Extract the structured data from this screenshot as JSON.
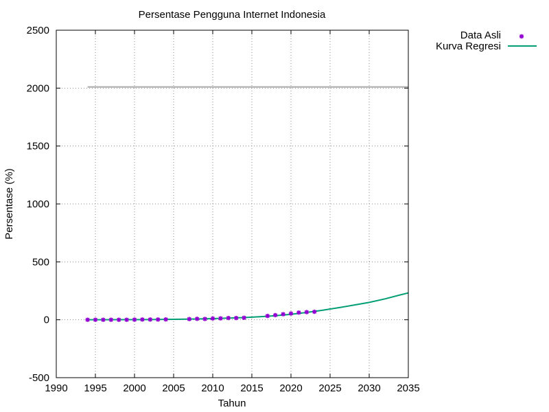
{
  "chart_data": {
    "type": "scatter",
    "title": "Persentase Pengguna Internet Indonesia",
    "xlabel": "Tahun",
    "ylabel": "Persentase (%)",
    "xlim": [
      1990,
      2035
    ],
    "ylim": [
      -500,
      2500
    ],
    "x_ticks": [
      1990,
      1995,
      2000,
      2005,
      2010,
      2015,
      2020,
      2025,
      2030,
      2035
    ],
    "y_ticks": [
      -500,
      0,
      500,
      1000,
      1500,
      2000,
      2500
    ],
    "grid": true,
    "legend_position": "outside-top-right",
    "series": [
      {
        "name": "Data Asli",
        "kind": "points",
        "color": "#9400d3",
        "x": [
          1994,
          1995,
          1996,
          1997,
          1998,
          1999,
          2000,
          2001,
          2002,
          2003,
          2004,
          2007,
          2008,
          2009,
          2010,
          2011,
          2012,
          2013,
          2014,
          2017,
          2018,
          2019,
          2020,
          2021,
          2022,
          2023
        ],
        "y": [
          0,
          0,
          0,
          0,
          0,
          0,
          1,
          2,
          2,
          2,
          3,
          6,
          8,
          7,
          11,
          12,
          15,
          15,
          17,
          33,
          40,
          48,
          54,
          62,
          66,
          69
        ]
      },
      {
        "name": "Kurva Regresi",
        "kind": "line",
        "color": "#009e73",
        "x": [
          1994,
          1996,
          1998,
          2000,
          2002,
          2004,
          2006,
          2008,
          2010,
          2012,
          2014,
          2016,
          2018,
          2020,
          2022,
          2024,
          2026,
          2028,
          2030,
          2032,
          2034,
          2035
        ],
        "y": [
          0,
          0,
          1,
          1,
          2,
          3,
          5,
          7,
          10,
          14,
          19,
          26,
          35,
          47,
          63,
          82,
          103,
          126,
          150,
          180,
          215,
          232
        ]
      }
    ],
    "reference_line": {
      "y": 2010,
      "x_range": [
        1994,
        2035
      ],
      "color": "#aaaaaa"
    }
  }
}
